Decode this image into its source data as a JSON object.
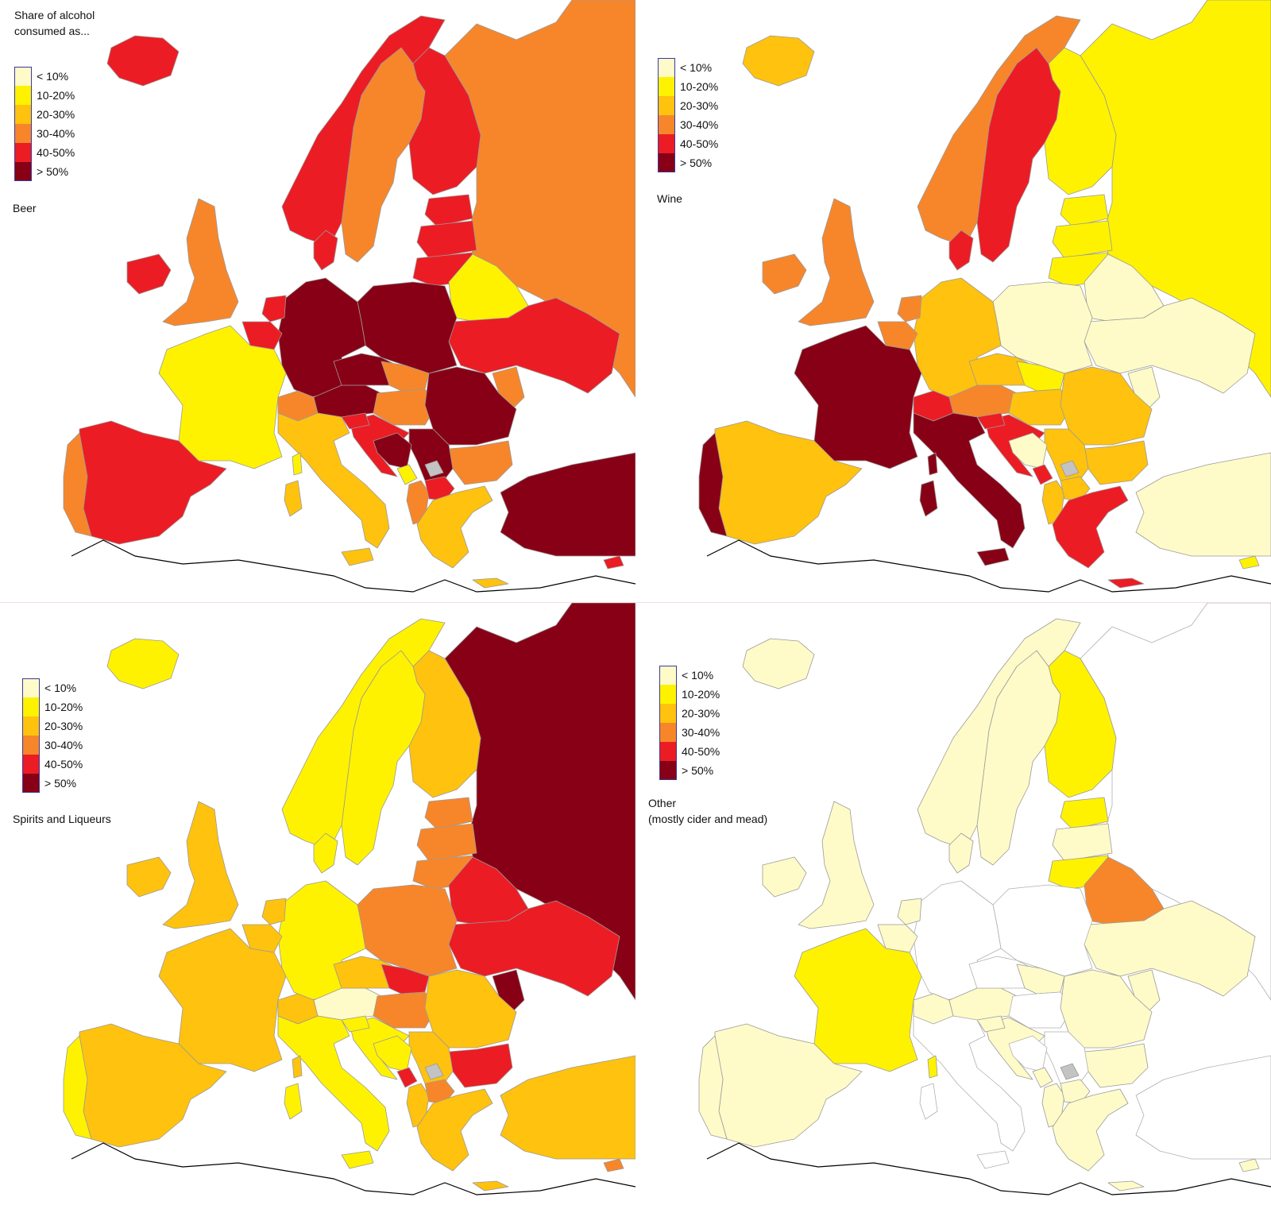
{
  "title": "Share of alcohol\nconsumed as...",
  "legend": {
    "items": [
      {
        "label": "< 10%",
        "color": "#fffbc8"
      },
      {
        "label": "10-20%",
        "color": "#fff200"
      },
      {
        "label": "20-30%",
        "color": "#ffc20e"
      },
      {
        "label": "30-40%",
        "color": "#f7862a"
      },
      {
        "label": "40-50%",
        "color": "#ec1c24"
      },
      {
        "label": "> 50%",
        "color": "#880015"
      }
    ]
  },
  "no_data_color": "#c3c3c3",
  "panels": [
    {
      "id": "beer",
      "caption": "Beer",
      "fills": {
        "iceland": 4,
        "norway": 4,
        "sweden": 3,
        "finland": 4,
        "russia": 3,
        "estonia": 4,
        "latvia": 4,
        "lithuania": 4,
        "belarus": 1,
        "ukraine": 4,
        "moldova": 3,
        "poland": 5,
        "germany": 5,
        "czechia": 5,
        "austria": 5,
        "slovakia": 3,
        "hungary": 3,
        "romania": 5,
        "bulgaria": 3,
        "serbia": 5,
        "croatia": 4,
        "bosnia": 5,
        "slovenia": 4,
        "montenegro": 1,
        "albania": 3,
        "macedonia": 4,
        "greece": 2,
        "turkey": 5,
        "cyprus": 4,
        "uk": 3,
        "ireland": 4,
        "france": 1,
        "spain": 4,
        "portugal": 3,
        "italy": 2,
        "switzerland": 3,
        "netherlands": 4,
        "belgium": 4,
        "denmark": 4
      }
    },
    {
      "id": "wine",
      "caption": "Wine",
      "fills": {
        "iceland": 2,
        "norway": 3,
        "sweden": 4,
        "finland": 1,
        "russia": 1,
        "estonia": 1,
        "latvia": 1,
        "lithuania": 1,
        "belarus": 0,
        "ukraine": 0,
        "moldova": 0,
        "poland": 0,
        "germany": 2,
        "czechia": 2,
        "austria": 3,
        "slovakia": 1,
        "hungary": 2,
        "romania": 2,
        "bulgaria": 2,
        "serbia": 2,
        "croatia": 4,
        "bosnia": 0,
        "slovenia": 4,
        "montenegro": 4,
        "albania": 2,
        "macedonia": 2,
        "greece": 4,
        "turkey": 0,
        "cyprus": 1,
        "uk": 3,
        "ireland": 3,
        "france": 5,
        "spain": 2,
        "portugal": 5,
        "italy": 5,
        "switzerland": 4,
        "netherlands": 3,
        "belgium": 3,
        "denmark": 4
      }
    },
    {
      "id": "spirits",
      "caption": "Spirits and Liqueurs",
      "fills": {
        "iceland": 1,
        "norway": 1,
        "sweden": 1,
        "finland": 2,
        "russia": 5,
        "estonia": 3,
        "latvia": 3,
        "lithuania": 3,
        "belarus": 4,
        "ukraine": 4,
        "moldova": 5,
        "poland": 3,
        "germany": 1,
        "czechia": 2,
        "austria": 0,
        "slovakia": 4,
        "hungary": 3,
        "romania": 2,
        "bulgaria": 4,
        "serbia": 2,
        "croatia": 1,
        "bosnia": 1,
        "slovenia": 1,
        "montenegro": 4,
        "albania": 2,
        "macedonia": 3,
        "greece": 2,
        "turkey": 2,
        "cyprus": 3,
        "uk": 2,
        "ireland": 2,
        "france": 2,
        "spain": 2,
        "portugal": 1,
        "italy": 1,
        "switzerland": 2,
        "netherlands": 2,
        "belgium": 2,
        "denmark": 1
      }
    },
    {
      "id": "other",
      "caption": "Other\n(mostly cider and mead)",
      "fills": {
        "iceland": 0,
        "norway": 0,
        "sweden": 0,
        "finland": 1,
        "russia": -1,
        "estonia": 1,
        "latvia": 0,
        "lithuania": 1,
        "belarus": 3,
        "ukraine": 0,
        "moldova": 0,
        "poland": -1,
        "germany": -1,
        "czechia": -1,
        "austria": 0,
        "slovakia": 0,
        "hungary": -1,
        "romania": 0,
        "bulgaria": 0,
        "serbia": -1,
        "croatia": 0,
        "bosnia": -1,
        "slovenia": 0,
        "montenegro": 0,
        "albania": 0,
        "macedonia": 0,
        "greece": 0,
        "turkey": -1,
        "cyprus": 0,
        "uk": 0,
        "ireland": 0,
        "france": 1,
        "spain": 0,
        "portugal": 0,
        "italy": -1,
        "switzerland": 0,
        "netherlands": 0,
        "belgium": 0,
        "denmark": 0
      }
    }
  ]
}
